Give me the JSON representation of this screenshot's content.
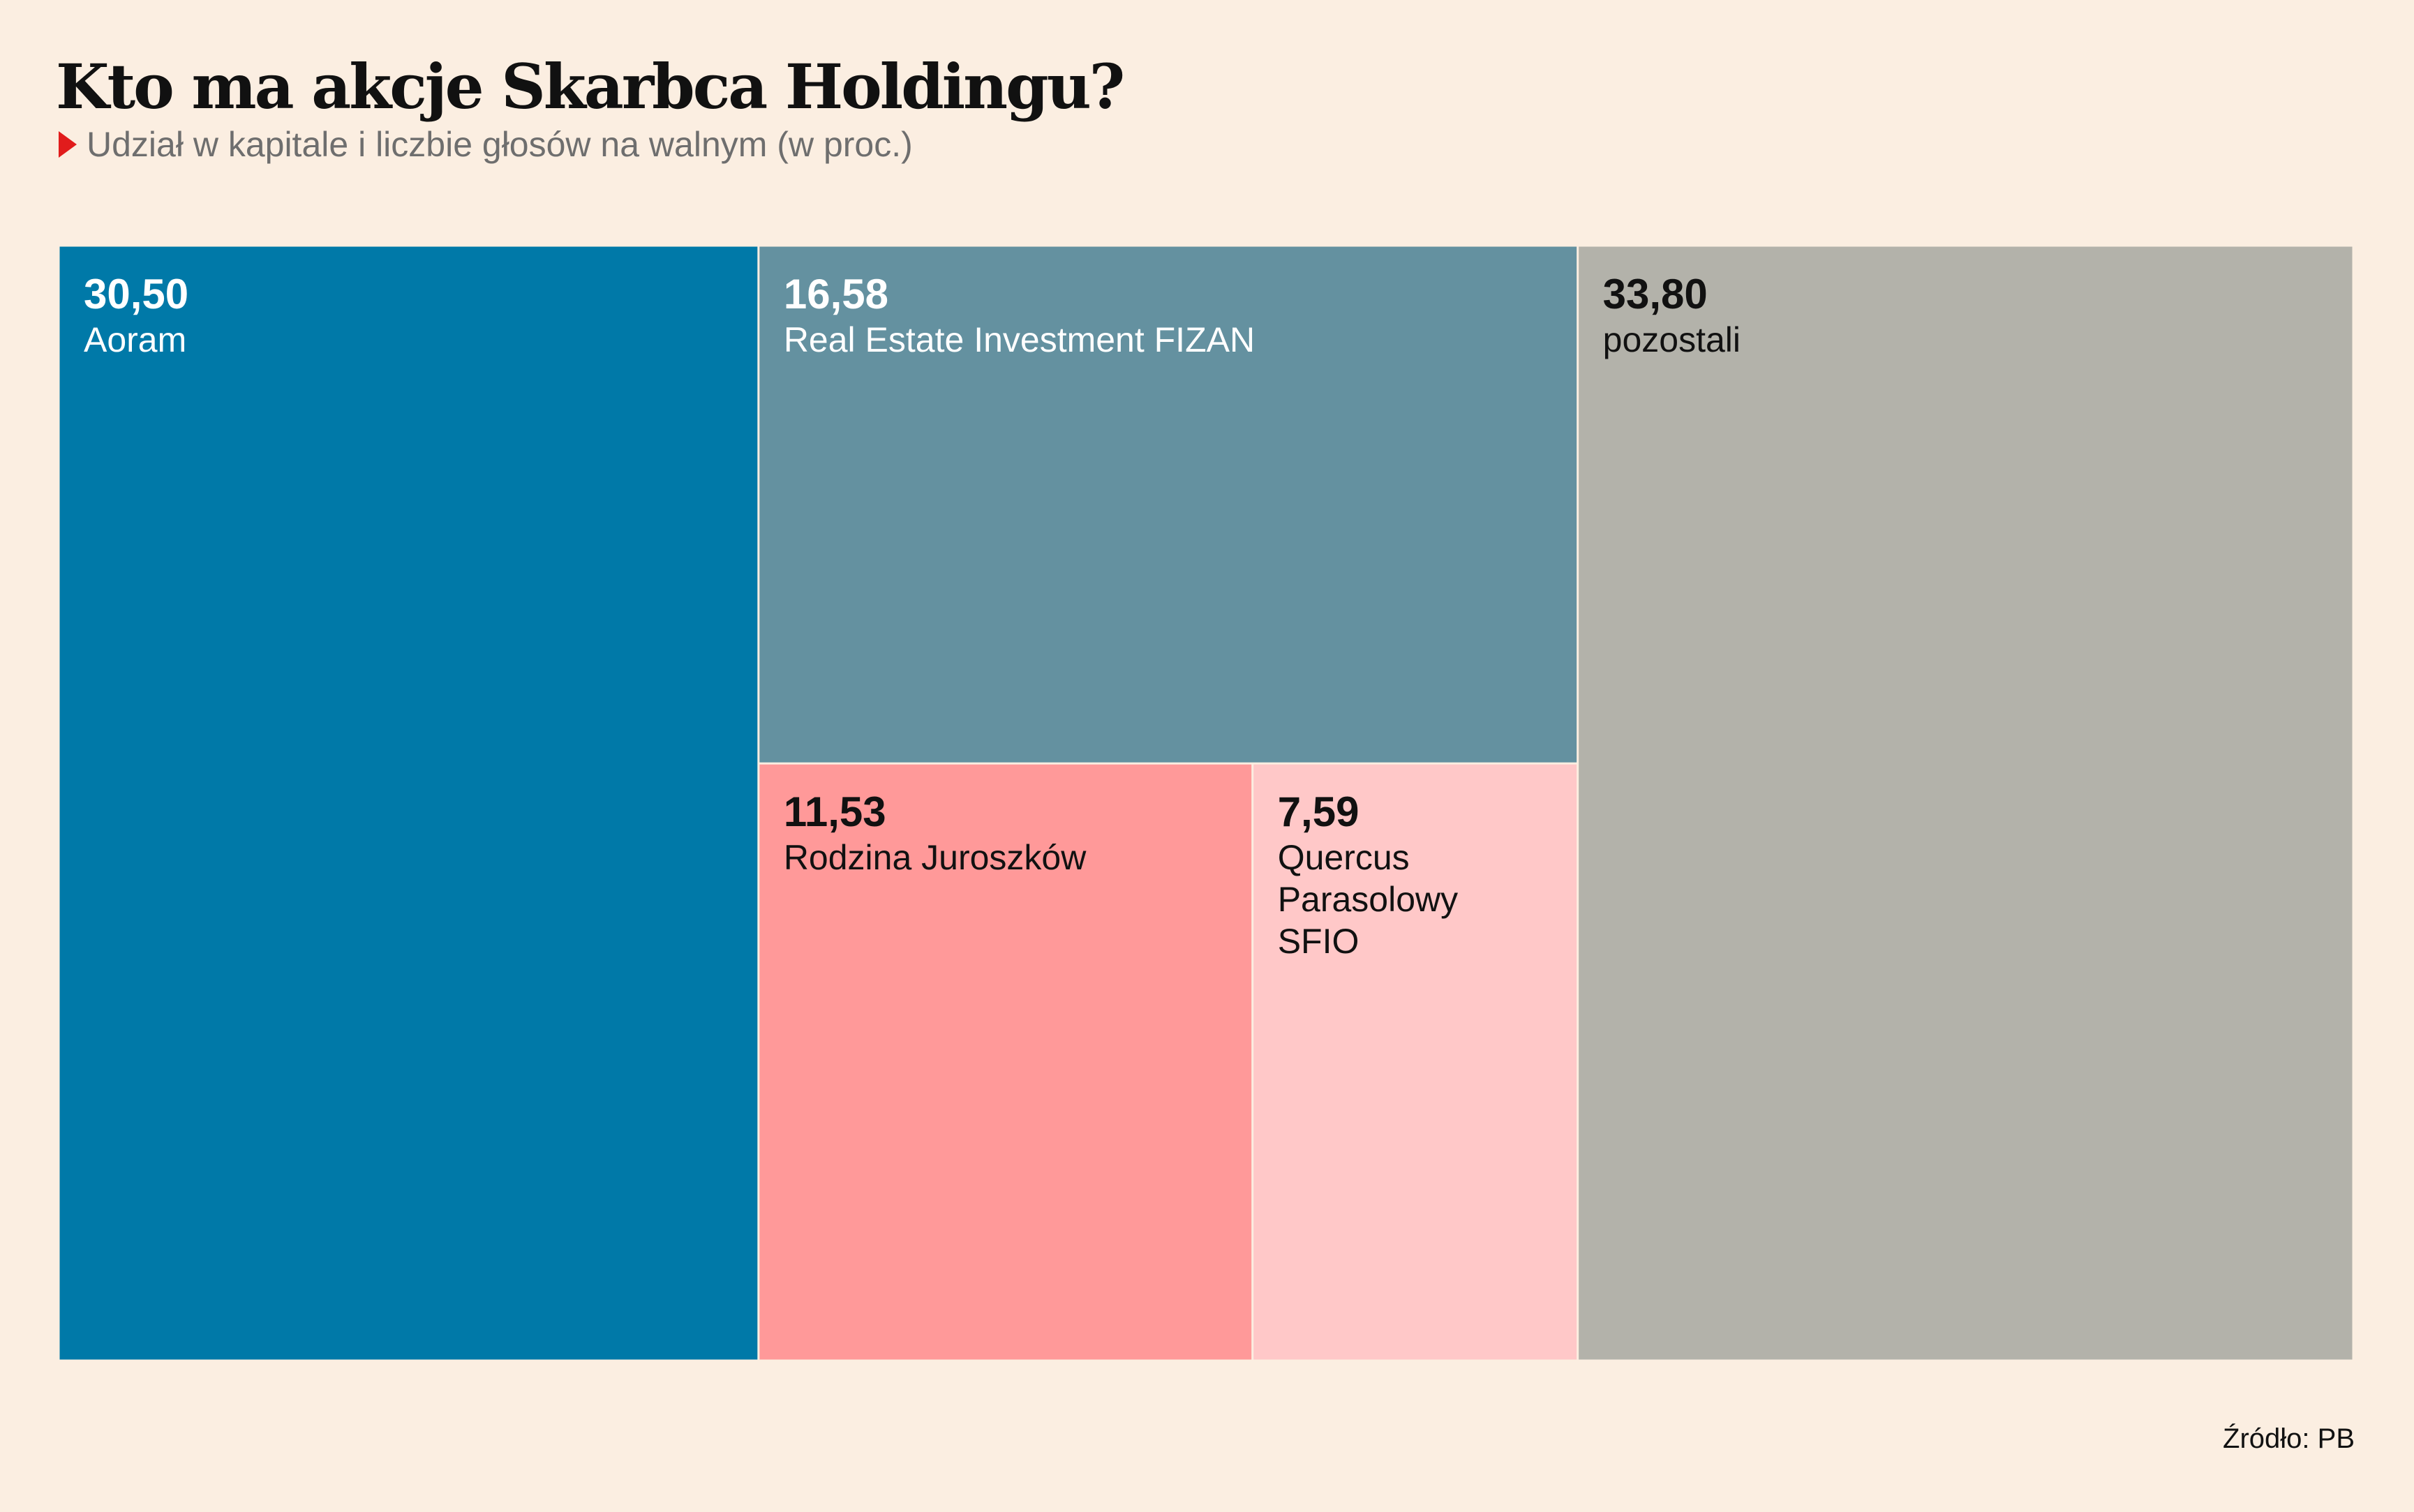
{
  "chart_data": {
    "type": "treemap",
    "title": "Kto ma akcje Skarbca Holdingu?",
    "subtitle": "Udział w kapitale i liczbie głosów na walnym (w proc.)",
    "source": "Źródło: PB",
    "segments": [
      {
        "name": "Aoram",
        "value": 30.5,
        "value_label": "30,50",
        "label_lines": [
          "Aoram"
        ],
        "color": "#0079a8",
        "text_color": "#ffffff"
      },
      {
        "name": "Real Estate Investment FIZAN",
        "value": 16.58,
        "value_label": "16,58",
        "label_lines": [
          "Real Estate Investment FIZAN"
        ],
        "color": "#6491a0",
        "text_color": "#ffffff"
      },
      {
        "name": "Rodzina Juroszków",
        "value": 11.53,
        "value_label": "11,53",
        "label_lines": [
          "Rodzina Juroszków"
        ],
        "color": "#ff9999",
        "text_color": "#111111"
      },
      {
        "name": "Quercus Parasolowy SFIO",
        "value": 7.59,
        "value_label": "7,59",
        "label_lines": [
          "Quercus",
          "Parasolowy",
          "SFIO"
        ],
        "color": "#ffc8c8",
        "text_color": "#111111"
      },
      {
        "name": "pozostali",
        "value": 33.8,
        "value_label": "33,80",
        "label_lines": [
          "pozostali"
        ],
        "color": "#b3b2aa",
        "text_color": "#111111"
      }
    ]
  }
}
